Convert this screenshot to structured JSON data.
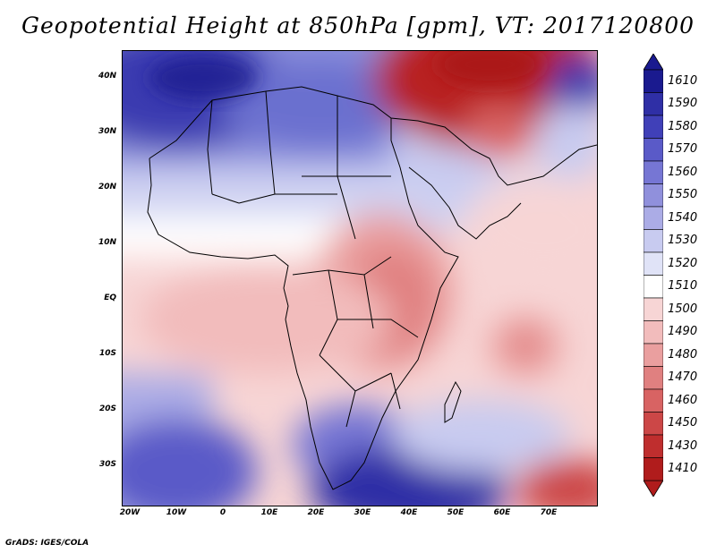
{
  "title": "Geopotential Height at 850hPa [gpm], VT: 2017120800",
  "credit": "GrADS: IGES/COLA",
  "map": {
    "lat_labels": [
      "40N",
      "30N",
      "20N",
      "10N",
      "EQ",
      "10S",
      "20S",
      "30S"
    ],
    "lon_labels": [
      "20W",
      "10W",
      "0",
      "10E",
      "20E",
      "30E",
      "40E",
      "50E",
      "60E",
      "70E"
    ]
  },
  "colorbar": {
    "labels": [
      "1610",
      "1590",
      "1580",
      "1570",
      "1560",
      "1550",
      "1540",
      "1530",
      "1520",
      "1510",
      "1500",
      "1490",
      "1480",
      "1470",
      "1460",
      "1450",
      "1430",
      "1410"
    ],
    "colors": [
      "#1a1a8f",
      "#2f2fa6",
      "#4040b8",
      "#5a5ac8",
      "#7676d4",
      "#9090dc",
      "#abace6",
      "#c8cbf0",
      "#e0e3f7",
      "#ffffff",
      "#f7d5d5",
      "#f2bcbc",
      "#ea9f9f",
      "#e08080",
      "#d86363",
      "#cc4747",
      "#bf2e2e",
      "#b01c1c"
    ]
  }
}
